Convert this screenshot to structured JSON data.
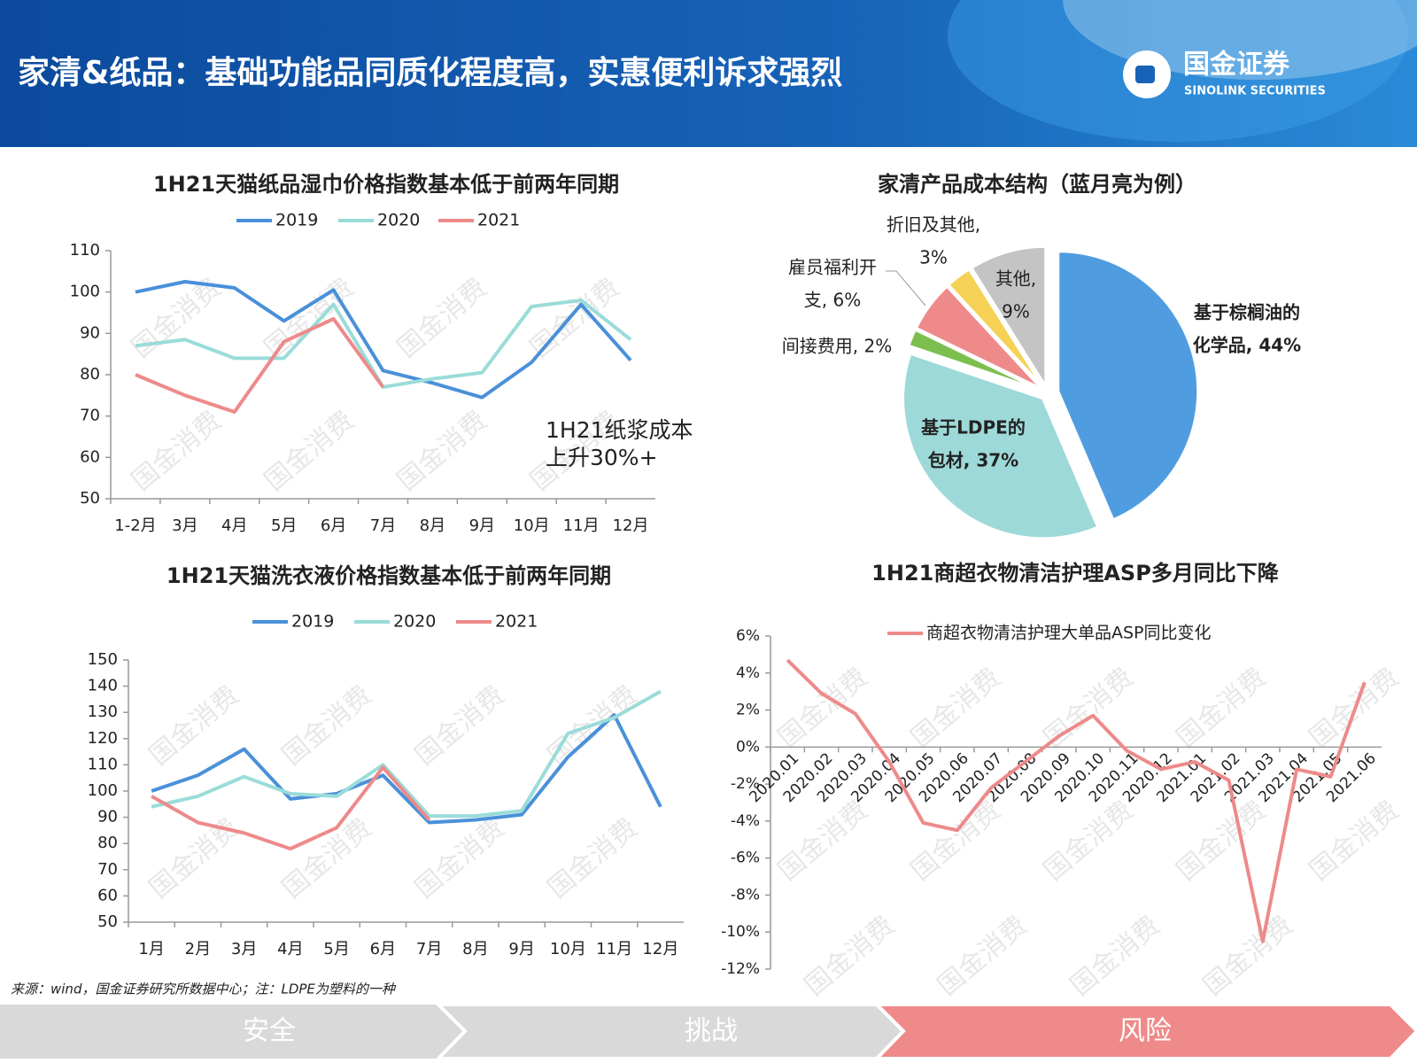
{
  "header": {
    "title": "家清&纸品：基础功能品同质化程度高，实惠便利诉求强烈",
    "logo": "国金证券",
    "logo_en": "SINOLINK SECURITIES"
  },
  "watermark": "国金消费",
  "chart_data": [
    {
      "type": "line",
      "title": "1H21天猫纸品湿巾价格指数基本低于前两年同期",
      "categories": [
        "1-2月",
        "3月",
        "4月",
        "5月",
        "6月",
        "7月",
        "8月",
        "9月",
        "10月",
        "11月",
        "12月"
      ],
      "series": [
        {
          "name": "2019",
          "color": "#4a90d9",
          "values": [
            100,
            102.5,
            101,
            93,
            100.5,
            81,
            78,
            74.5,
            83,
            97,
            83.5
          ]
        },
        {
          "name": "2020",
          "color": "#9adcd9",
          "values": [
            87,
            88.5,
            84,
            84,
            97,
            77,
            79,
            80.5,
            96.5,
            98,
            88.5
          ]
        },
        {
          "name": "2021",
          "color": "#ee8a8a",
          "values": [
            80,
            75,
            71,
            88,
            93.5,
            77,
            null,
            null,
            null,
            null,
            null
          ]
        }
      ],
      "ylim": [
        50,
        110
      ],
      "yticks": [
        50,
        60,
        70,
        80,
        90,
        100,
        110
      ],
      "annotation": [
        "1H21纸浆成本",
        "上升30%+"
      ]
    },
    {
      "type": "pie",
      "title": "家清产品成本结构（蓝月亮为例）",
      "values": [
        44,
        37,
        2,
        6,
        3,
        9
      ],
      "labels": [
        [
          "基于棕榈油的",
          "化学品, 44%"
        ],
        [
          "基于LDPE的",
          "包材, 37%"
        ],
        [
          "间接费用, 2%"
        ],
        [
          "雇员福利开",
          "支, 6%"
        ],
        [
          "折旧及其他,",
          "3%"
        ],
        [
          "其他,",
          "9%"
        ]
      ],
      "colors": [
        "#4f9de0",
        "#9dd9d8",
        "#7dbf4f",
        "#ef8a8a",
        "#f5d155",
        "#c4c4c4"
      ]
    },
    {
      "type": "line",
      "title": "1H21天猫洗衣液价格指数基本低于前两年同期",
      "categories": [
        "1月",
        "2月",
        "3月",
        "4月",
        "5月",
        "6月",
        "7月",
        "8月",
        "9月",
        "10月",
        "11月",
        "12月"
      ],
      "series": [
        {
          "name": "2019",
          "color": "#4a90d9",
          "values": [
            100,
            106,
            116,
            97,
            99,
            106,
            88,
            89,
            91,
            113,
            129,
            94
          ]
        },
        {
          "name": "2020",
          "color": "#9adcd9",
          "values": [
            94,
            98,
            105.5,
            99,
            98,
            110,
            90.5,
            90.5,
            92.5,
            122,
            128,
            138
          ]
        },
        {
          "name": "2021",
          "color": "#ee8a8a",
          "values": [
            98,
            88,
            84,
            78,
            86,
            109,
            89,
            null,
            null,
            null,
            null,
            null
          ]
        }
      ],
      "ylim": [
        50,
        150
      ],
      "yticks": [
        50,
        60,
        70,
        80,
        90,
        100,
        110,
        120,
        130,
        140,
        150
      ]
    },
    {
      "type": "line",
      "title": "1H21商超衣物清洁护理ASP多月同比下降",
      "categories": [
        "2020.01",
        "2020.02",
        "2020.03",
        "2020.04",
        "2020.05",
        "2020.06",
        "2020.07",
        "2020.08",
        "2020.09",
        "2020.10",
        "2020.11",
        "2020.12",
        "2021.01",
        "2021.02",
        "2021.03",
        "2021.04",
        "2021.05",
        "2021.06"
      ],
      "series": [
        {
          "name": "商超衣物清洁护理大单品ASP同比变化",
          "color": "#ee8a8a",
          "values": [
            4.7,
            2.9,
            1.8,
            -0.8,
            -4.1,
            -4.5,
            -2.2,
            -0.8,
            0.6,
            1.7,
            -0.2,
            -1.2,
            -0.8,
            -1.8,
            -10.5,
            -1.2,
            -1.6,
            3.5
          ]
        }
      ],
      "ylim": [
        -12,
        6
      ],
      "yticks": [
        {
          "value": -12,
          "label": "-12%"
        },
        {
          "value": -10,
          "label": "-10%"
        },
        {
          "value": -8,
          "label": "-8%"
        },
        {
          "value": -6,
          "label": "-6%"
        },
        {
          "value": -4,
          "label": "-4%"
        },
        {
          "value": -2,
          "label": "-2%"
        },
        {
          "value": 0,
          "label": "0%"
        },
        {
          "value": 2,
          "label": "2%"
        },
        {
          "value": 4,
          "label": "4%"
        },
        {
          "value": 6,
          "label": "6%"
        }
      ]
    }
  ],
  "source": "来源：wind，国金证券研究所数据中心；注：LDPE为塑料的一种",
  "nav": [
    "安全",
    "挑战",
    "风险"
  ]
}
